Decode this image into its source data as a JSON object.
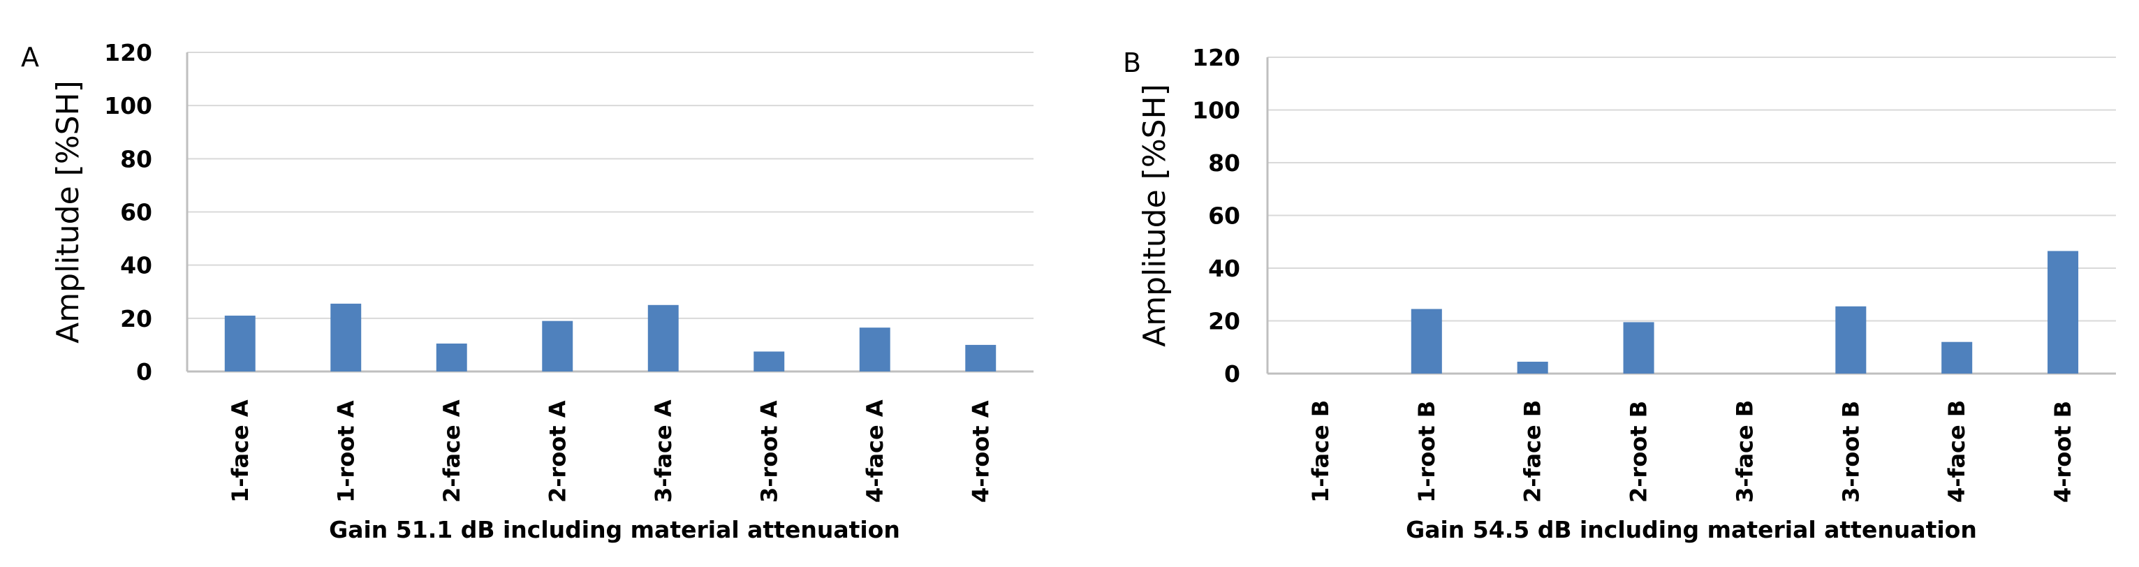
{
  "colors": {
    "bar": "#4f81bd",
    "grid": "#d9d9d9",
    "axis": "#bfbfbf"
  },
  "chart_data": [
    {
      "type": "bar",
      "panel_label": "A",
      "categories": [
        "1-face A",
        "1-root A",
        "2-face A",
        "2-root A",
        "3-face A",
        "3-root A",
        "4-face A",
        "4-root A"
      ],
      "values": [
        21,
        25.5,
        10.5,
        19,
        25,
        7.5,
        16.5,
        10
      ],
      "yticks": [
        "0",
        "20",
        "40",
        "60",
        "80",
        "100",
        "120"
      ],
      "ylim": [
        0,
        120
      ],
      "ylabel": "Amplitude [%SH]",
      "xlabel": "Gain 51.1 dB including material attenuation",
      "grid": true,
      "legend": "none"
    },
    {
      "type": "bar",
      "panel_label": "B",
      "categories": [
        "1-face B",
        "1-root B",
        "2-face B",
        "2-root B",
        "3-face B",
        "3-root B",
        "4-face B",
        "4-root B"
      ],
      "values": [
        0,
        24.5,
        4.5,
        19.5,
        0,
        25.5,
        12,
        46.5
      ],
      "yticks": [
        "0",
        "20",
        "40",
        "60",
        "80",
        "100",
        "120"
      ],
      "ylim": [
        0,
        120
      ],
      "ylabel": "Amplitude [%SH]",
      "xlabel": "Gain 54.5 dB including material attenuation",
      "grid": true,
      "legend": "none"
    }
  ]
}
